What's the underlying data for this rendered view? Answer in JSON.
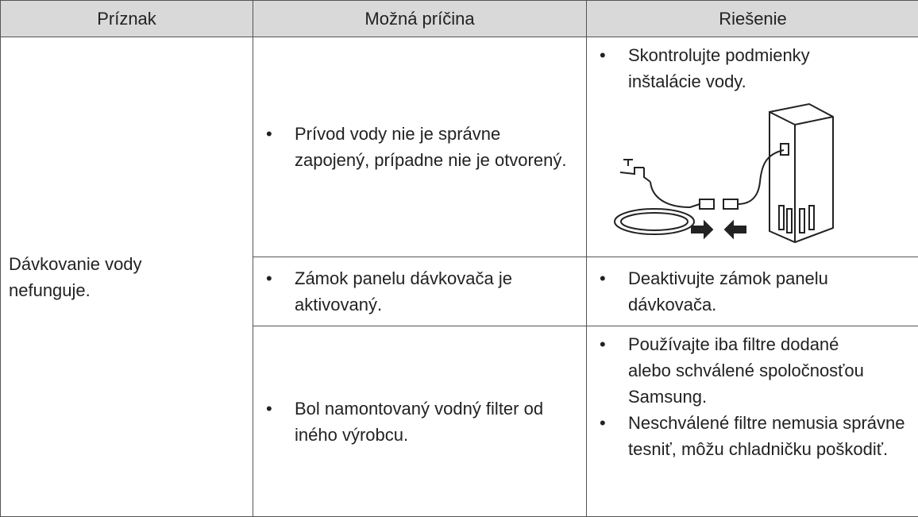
{
  "table": {
    "header": [
      "Príznak",
      "Možná príčina",
      "Riešenie"
    ],
    "symptom": "Dávkovanie vody nefunguje.",
    "rows": [
      {
        "causes": [
          "Prívod vody nie je správne zapojený, prípadne nie je otvorený."
        ],
        "solutions": [
          "Skontrolujte podmienky inštalácie vody."
        ]
      },
      {
        "causes": [
          "Zámok panelu dávkovača je aktivovaný."
        ],
        "solutions": [
          "Deaktivujte zámok panelu dávkovača."
        ]
      },
      {
        "causes": [
          "Bol namontovaný vodný filter od iného výrobcu."
        ],
        "solutions": [
          "Používajte iba filtre dodané alebo schválené spoločnosťou Samsung.",
          "Neschválené filtre nemusia správne tesniť, môžu chladničku poškodiť."
        ]
      }
    ]
  }
}
